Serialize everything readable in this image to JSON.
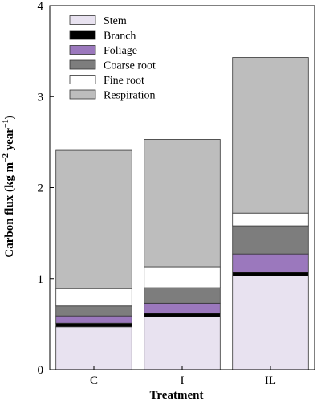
{
  "chart_data": {
    "type": "bar",
    "stacked": true,
    "xlabel": "Treatment",
    "ylabel": "Carbon flux (kg m",
    "ylabel_sup1": "−2",
    "ylabel_mid": " year",
    "ylabel_sup2": "−1",
    "ylabel_end": ")",
    "ylim": [
      0,
      4
    ],
    "yticks": [
      "0",
      "1",
      "2",
      "3",
      "4"
    ],
    "categories": [
      "C",
      "I",
      "IL"
    ],
    "series": [
      {
        "name": "Stem",
        "color": "#e8e2f0",
        "values": [
          0.47,
          0.58,
          1.03
        ]
      },
      {
        "name": "Branch",
        "color": "#000000",
        "values": [
          0.04,
          0.04,
          0.04
        ]
      },
      {
        "name": "Foliage",
        "color": "#9b78bd",
        "values": [
          0.08,
          0.11,
          0.2
        ]
      },
      {
        "name": "Coarse root",
        "color": "#7d7d7d",
        "values": [
          0.11,
          0.17,
          0.31
        ]
      },
      {
        "name": "Fine root",
        "color": "#ffffff",
        "values": [
          0.19,
          0.23,
          0.14
        ]
      },
      {
        "name": "Respiration",
        "color": "#bdbdbd",
        "values": [
          1.52,
          1.4,
          1.71
        ]
      }
    ],
    "legend_position": "top-left",
    "grid": false
  }
}
